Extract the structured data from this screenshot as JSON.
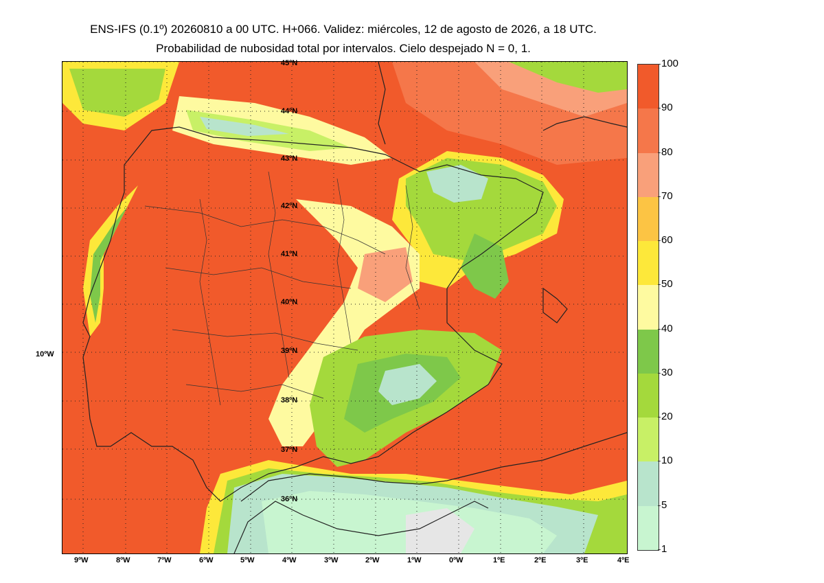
{
  "header": {
    "title_line1": "ENS-IFS (0.1º) 20260810 a 00 UTC. H+066. Validez: miércoles, 12 de agosto de 2026, a 18 UTC.",
    "title_line2": "Probabilidad de nubosidad total por intervalos. Cielo despejado N = 0, 1."
  },
  "map": {
    "lon_labels": [
      "9ºW",
      "8ºW",
      "7ºW",
      "6ºW",
      "5ºW",
      "4ºW",
      "3ºW",
      "2ºW",
      "1ºW",
      "0ºW",
      "1ºE",
      "2ºE",
      "3ºE",
      "4ºE"
    ],
    "lat_labels": [
      "45ºN",
      "44ºN",
      "43ºN",
      "42ºN",
      "41ºN",
      "40ºN",
      "39ºN",
      "38ºN",
      "37ºN",
      "36ºN"
    ],
    "side_label": "10ºW"
  },
  "colorbar": {
    "tick_labels": [
      "100",
      "90",
      "80",
      "70",
      "60",
      "50",
      "40",
      "30",
      "20",
      "10",
      "5",
      "1"
    ],
    "colors": [
      "#f15a2b",
      "#f5774a",
      "#f9a07a",
      "#fcc444",
      "#fde83a",
      "#fefaa0",
      "#7ec84a",
      "#a4d93c",
      "#c8f066",
      "#b8e4cc",
      "#c8f5d0"
    ]
  }
}
